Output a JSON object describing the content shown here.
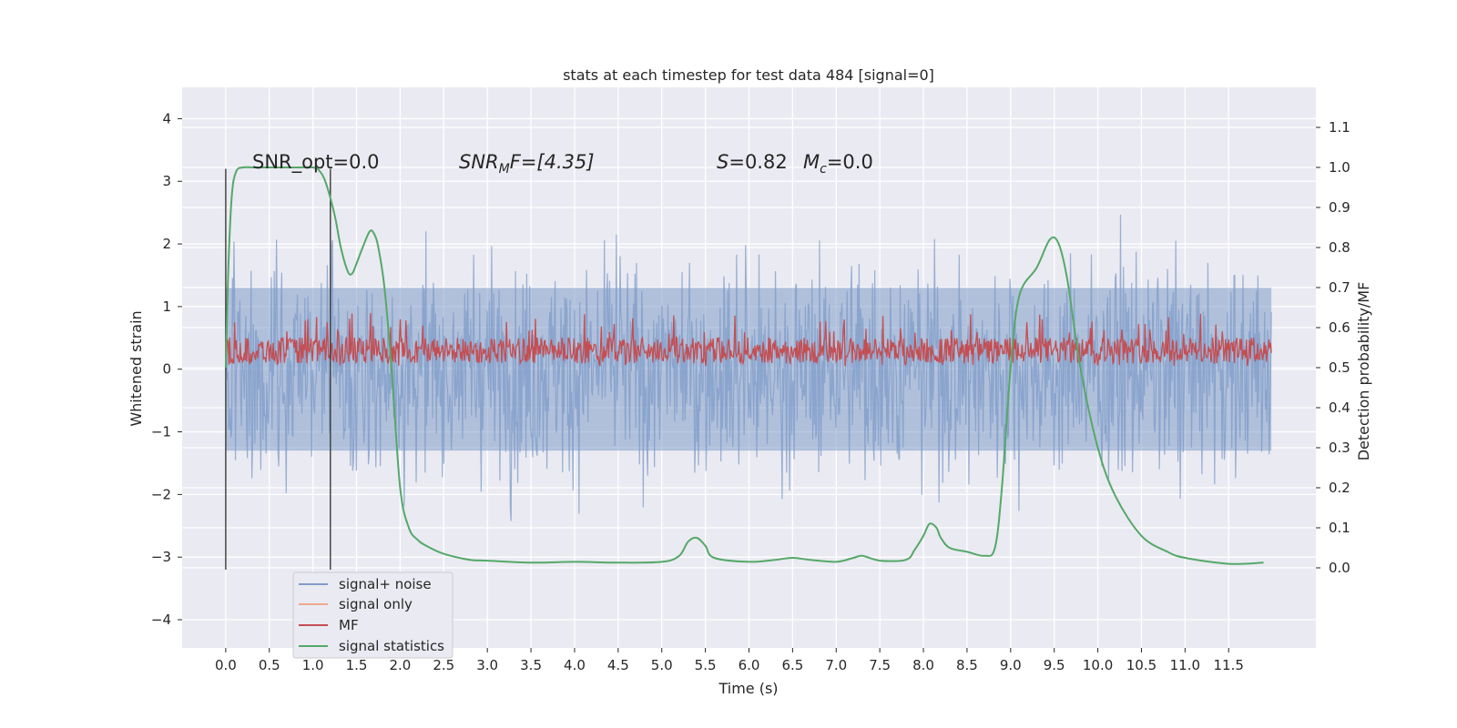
{
  "chart_data": {
    "type": "line",
    "title": "stats at each timestep for test data 484 [signal=0]",
    "xlabel": "Time (s)",
    "ylabel": "Whitened strain",
    "y2label": "Detection probability/MF",
    "xlim": [
      -0.5,
      12.5
    ],
    "ylim": [
      -4.45,
      4.5
    ],
    "y2lim": [
      -0.2,
      1.2
    ],
    "x_ticks": [
      "0.0",
      "0.5",
      "1.0",
      "1.5",
      "2.0",
      "2.5",
      "3.0",
      "3.5",
      "4.0",
      "4.5",
      "5.0",
      "5.5",
      "6.0",
      "6.5",
      "7.0",
      "7.5",
      "8.0",
      "8.5",
      "9.0",
      "9.5",
      "10.0",
      "10.5",
      "11.0",
      "11.5"
    ],
    "y_ticks": [
      "4",
      "3",
      "2",
      "1",
      "0",
      "−1",
      "−2",
      "−3",
      "−4"
    ],
    "y2_ticks": [
      "1.1",
      "1.0",
      "0.9",
      "0.8",
      "0.7",
      "0.6",
      "0.5",
      "0.4",
      "0.3",
      "0.2",
      "0.1",
      "0.0"
    ],
    "grid": true,
    "legend_position": "lower-left",
    "colors": {
      "noise": "#7f9cc9",
      "signal_only": "#eea98d",
      "mf": "#c44e52",
      "stats": "#55a868",
      "markers": "#3a3a3a",
      "background": "#eaeaf2"
    },
    "annotations": {
      "snr_opt": "SNR_opt=0.0",
      "snr_mf_base": "SNR",
      "snr_mf_sub": "M",
      "snr_mf_rest": "F=[4.35]",
      "s_sym": "S",
      "s_val": "=0.82",
      "mc_sym": "M",
      "mc_sub": "c",
      "mc_val": "=0.0"
    },
    "legend": {
      "noise": "signal+ noise",
      "signal_only": "signal only",
      "mf": "MF",
      "stats": "signal statistics"
    },
    "markers": [
      0.0,
      1.2
    ],
    "series": [
      {
        "name": "signal statistics",
        "x": [
          0.0,
          0.03,
          0.07,
          0.12,
          0.2,
          0.3,
          0.5,
          0.8,
          1.0,
          1.08,
          1.15,
          1.25,
          1.32,
          1.4,
          1.45,
          1.5,
          1.57,
          1.65,
          1.7,
          1.75,
          1.82,
          1.9,
          2.0,
          2.1,
          2.2,
          2.3,
          2.5,
          2.8,
          3.0,
          3.5,
          4.0,
          4.5,
          5.0,
          5.2,
          5.3,
          5.4,
          5.5,
          5.6,
          6.0,
          6.3,
          6.5,
          6.7,
          7.0,
          7.2,
          7.3,
          7.5,
          7.8,
          7.9,
          8.0,
          8.07,
          8.15,
          8.2,
          8.3,
          8.5,
          8.7,
          8.82,
          8.9,
          9.0,
          9.1,
          9.3,
          9.45,
          9.55,
          9.65,
          9.8,
          10.0,
          10.2,
          10.5,
          10.8,
          11.0,
          11.5,
          11.9
        ],
        "values": [
          0.5,
          0.75,
          0.93,
          0.99,
          1.0,
          1.0,
          1.0,
          1.0,
          1.0,
          0.99,
          0.96,
          0.88,
          0.8,
          0.74,
          0.735,
          0.76,
          0.8,
          0.84,
          0.835,
          0.8,
          0.7,
          0.5,
          0.2,
          0.1,
          0.07,
          0.055,
          0.035,
          0.02,
          0.018,
          0.013,
          0.015,
          0.013,
          0.015,
          0.03,
          0.065,
          0.075,
          0.055,
          0.025,
          0.015,
          0.02,
          0.025,
          0.02,
          0.015,
          0.025,
          0.03,
          0.018,
          0.02,
          0.045,
          0.08,
          0.11,
          0.1,
          0.075,
          0.05,
          0.04,
          0.03,
          0.05,
          0.2,
          0.5,
          0.68,
          0.75,
          0.82,
          0.81,
          0.72,
          0.5,
          0.3,
          0.18,
          0.08,
          0.04,
          0.025,
          0.01,
          0.013
        ]
      }
    ]
  }
}
